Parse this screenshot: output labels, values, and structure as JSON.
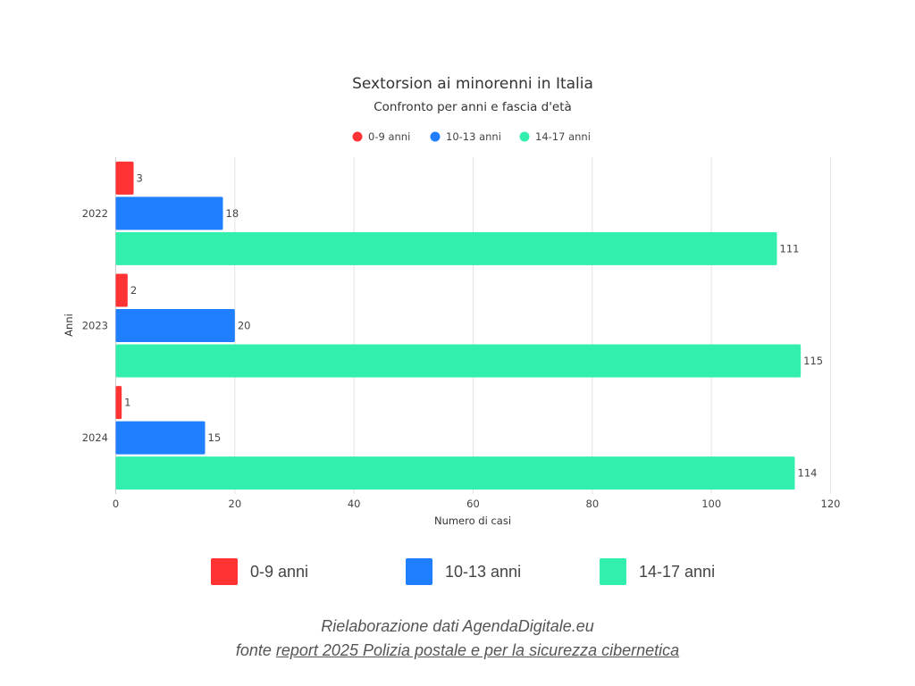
{
  "chart_data": {
    "type": "bar",
    "orientation": "horizontal",
    "title": "Sextorsion ai minorenni in Italia",
    "subtitle": "Confronto per anni e fascia d'età",
    "categories": [
      "2022",
      "2023",
      "2024"
    ],
    "series": [
      {
        "name": "0-9 anni",
        "color": "#ff3333",
        "values": [
          3,
          2,
          1
        ]
      },
      {
        "name": "10-13 anni",
        "color": "#1f7fff",
        "values": [
          18,
          20,
          15
        ]
      },
      {
        "name": "14-17 anni",
        "color": "#33efad",
        "values": [
          111,
          115,
          114
        ]
      }
    ],
    "xlabel": "Numero di casi",
    "ylabel": "Anni",
    "xlim": [
      0,
      120
    ],
    "xticks": [
      "0",
      "20",
      "40",
      "60",
      "80",
      "100",
      "120"
    ],
    "grid": true,
    "legend": "top-center"
  },
  "bottom_legend": [
    "0-9 anni",
    "10-13 anni",
    "14-17 anni"
  ],
  "footer": {
    "line1": "Rielaborazione dati AgendaDigitale.eu",
    "line2_prefix": "fonte ",
    "line2_link": "report 2025 Polizia postale e per la sicurezza cibernetica"
  }
}
